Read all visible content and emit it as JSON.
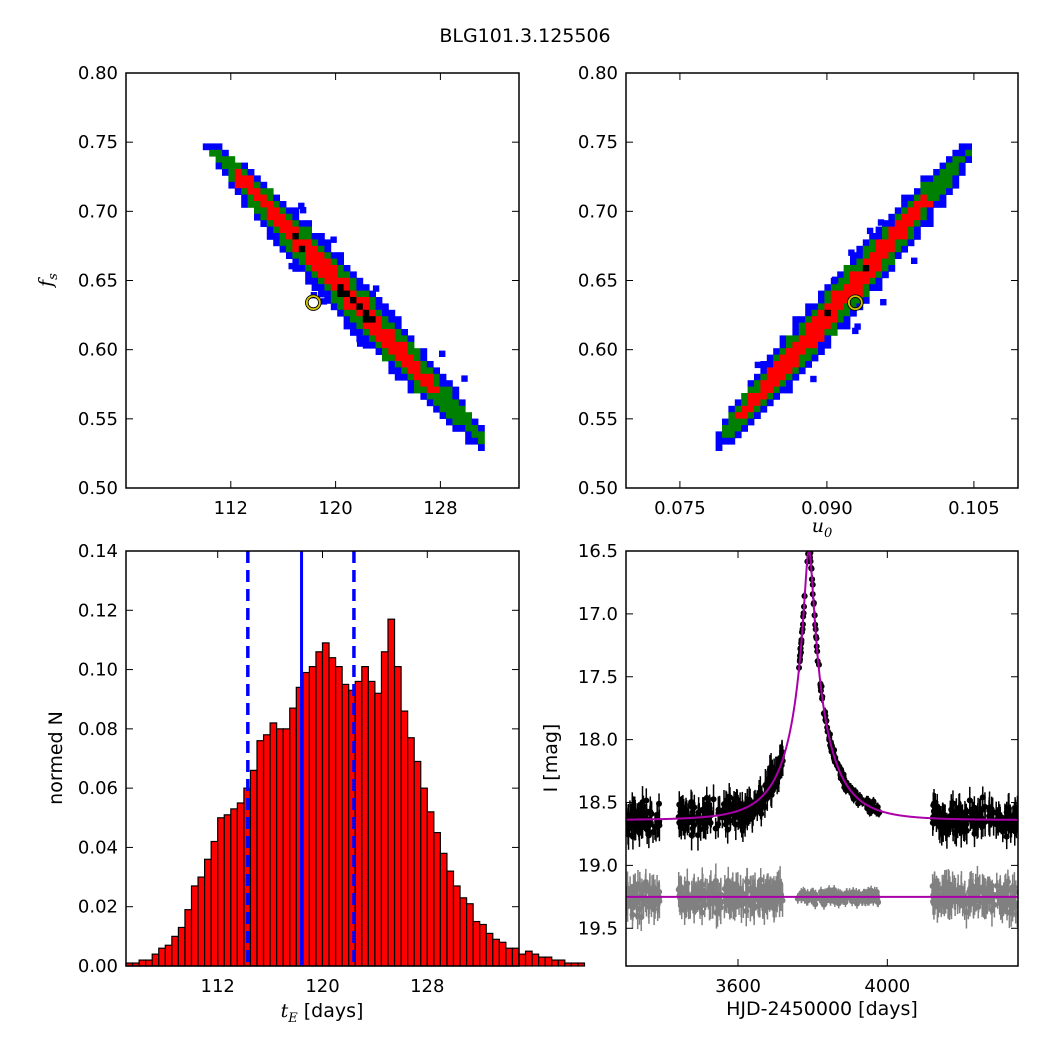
{
  "figure": {
    "title": "BLG101.3.125506"
  },
  "chart_data": [
    {
      "id": "fs_vs_tE",
      "type": "heatmap",
      "xlabel": "",
      "ylabel": "f_s",
      "xlim": [
        104,
        134
      ],
      "ylim": [
        0.5,
        0.8
      ],
      "xticks": [
        112,
        120,
        128
      ],
      "yticks": [
        0.5,
        0.55,
        0.6,
        0.65,
        0.7,
        0.75,
        0.8
      ],
      "ytick_labels": [
        "0.50",
        "0.55",
        "0.60",
        "0.65",
        "0.70",
        "0.75",
        "0.80"
      ],
      "contour_colors": {
        "sigma3": "#0000ff",
        "sigma2": "#008000",
        "sigma1": "#ff0000",
        "density_peak": "#000000"
      },
      "ridge": {
        "x_start": 110.5,
        "y_start": 0.748,
        "x_end": 131.3,
        "y_end": 0.532
      },
      "best_fit": {
        "x": 118.3,
        "y": 0.634
      }
    },
    {
      "id": "fs_vs_u0",
      "type": "heatmap",
      "xlabel": "u_0",
      "ylabel": "",
      "xlim": [
        0.0695,
        0.1095
      ],
      "ylim": [
        0.5,
        0.8
      ],
      "xticks": [
        0.075,
        0.09,
        0.105
      ],
      "xtick_labels": [
        "0.075",
        "0.090",
        "0.105"
      ],
      "yticks": [
        0.5,
        0.55,
        0.6,
        0.65,
        0.7,
        0.75,
        0.8
      ],
      "ytick_labels": [
        "0.50",
        "0.55",
        "0.60",
        "0.65",
        "0.70",
        "0.75",
        "0.80"
      ],
      "contour_colors": {
        "sigma3": "#0000ff",
        "sigma2": "#008000",
        "sigma1": "#ff0000",
        "density_peak": "#000000"
      },
      "ridge": {
        "x_start": 0.079,
        "y_start": 0.532,
        "x_end": 0.1045,
        "y_end": 0.745
      },
      "best_fit": {
        "x": 0.0929,
        "y": 0.634
      }
    },
    {
      "id": "tE_histogram",
      "type": "bar",
      "xlabel": "[days]",
      "xlabel_symbol": "t_E",
      "ylabel": "normed N",
      "xlim": [
        105,
        135
      ],
      "ylim": [
        0,
        0.14
      ],
      "xticks": [
        112,
        120,
        128
      ],
      "yticks": [
        0,
        0.02,
        0.04,
        0.06,
        0.08,
        0.1,
        0.12,
        0.14
      ],
      "ytick_labels": [
        "0.00",
        "0.02",
        "0.04",
        "0.06",
        "0.08",
        "0.10",
        "0.12",
        "0.14"
      ],
      "bin_start": 105,
      "bin_width": 0.5,
      "values": [
        0.001,
        0.001,
        0.002,
        0.002,
        0.004,
        0.006,
        0.007,
        0.01,
        0.013,
        0.019,
        0.027,
        0.03,
        0.036,
        0.042,
        0.05,
        0.051,
        0.053,
        0.055,
        0.06,
        0.066,
        0.076,
        0.078,
        0.082,
        0.08,
        0.08,
        0.087,
        0.094,
        0.099,
        0.101,
        0.106,
        0.109,
        0.104,
        0.101,
        0.095,
        0.093,
        0.096,
        0.101,
        0.096,
        0.092,
        0.106,
        0.117,
        0.101,
        0.086,
        0.077,
        0.069,
        0.06,
        0.052,
        0.045,
        0.038,
        0.032,
        0.027,
        0.023,
        0.021,
        0.015,
        0.014,
        0.011,
        0.009,
        0.008,
        0.006,
        0.006,
        0.004,
        0.005,
        0.004,
        0.003,
        0.003,
        0.002,
        0.002,
        0.001,
        0.001,
        0.001
      ],
      "bar_color": "#ff0000",
      "median_line": 118.4,
      "confidence_lines": [
        114.3,
        122.4
      ],
      "line_color": "#0000ff"
    },
    {
      "id": "light_curve",
      "type": "scatter",
      "xlabel": "HJD-2450000 [days]",
      "ylabel": "I [mag]",
      "xlim": [
        3300,
        4350
      ],
      "ylim": [
        19.8,
        16.5
      ],
      "y_inverted": true,
      "xticks": [
        3600,
        4000
      ],
      "yticks": [
        16.5,
        17.0,
        17.5,
        18.0,
        18.5,
        19.0,
        19.5
      ],
      "ytick_labels": [
        "16.5",
        "17.0",
        "17.5",
        "18.0",
        "18.5",
        "19.0",
        "19.5"
      ],
      "model": {
        "t0": 3790,
        "tE": 118.3,
        "u0": 0.0929,
        "fs": 0.634,
        "base_mag": 18.64,
        "color": "#aa00aa"
      },
      "data_color": "#000000",
      "residual_color": "#808080",
      "residual_level": 19.25,
      "observing_seasons": [
        [
          3300,
          3390
        ],
        [
          3440,
          3720
        ],
        [
          3760,
          3980
        ],
        [
          4120,
          4350
        ]
      ]
    }
  ]
}
